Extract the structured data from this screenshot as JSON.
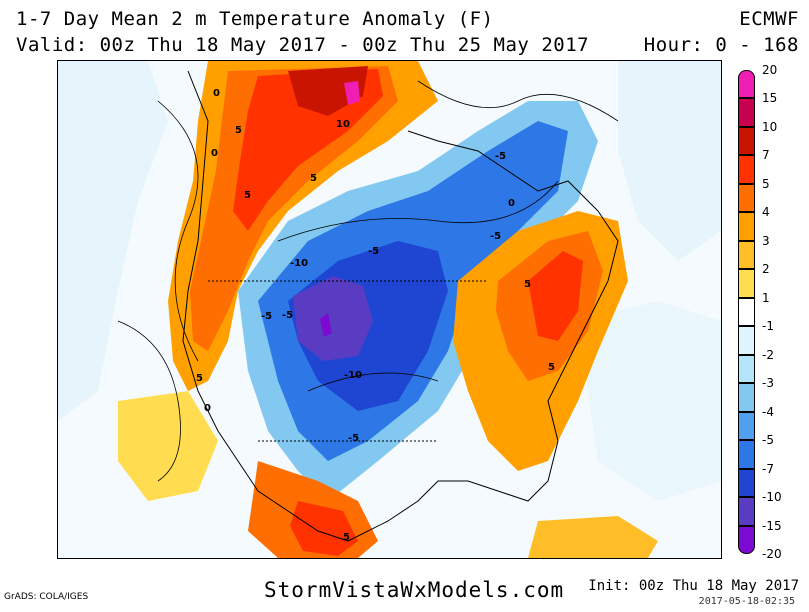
{
  "header": {
    "title": "1-7 Day Mean 2 m Temperature Anomaly (F)",
    "valid": "Valid: 00z Thu 18 May 2017 - 00z Thu 25 May 2017",
    "brand": "ECMWF",
    "hour": "Hour: 0 - 168"
  },
  "map": {
    "contour_labels": [
      "0",
      "0",
      "5",
      "10",
      "-5",
      "5",
      "5",
      "-10",
      "-5",
      "-5",
      "-5",
      "-5",
      "5",
      "5",
      "-10",
      "5",
      "0",
      "-5",
      "5",
      "0"
    ]
  },
  "legend": {
    "entries": [
      {
        "label": "20",
        "color": "#f01eb4"
      },
      {
        "label": "15",
        "color": "#c80050"
      },
      {
        "label": "10",
        "color": "#c81400"
      },
      {
        "label": "7",
        "color": "#ff3200"
      },
      {
        "label": "5",
        "color": "#ff6e00"
      },
      {
        "label": "4",
        "color": "#ffa000"
      },
      {
        "label": "3",
        "color": "#ffbe28"
      },
      {
        "label": "2",
        "color": "#ffdc50"
      },
      {
        "label": "1",
        "color": "#ffffff"
      },
      {
        "label": "-1",
        "color": "#e1f5ff"
      },
      {
        "label": "-2",
        "color": "#b4e6fa"
      },
      {
        "label": "-3",
        "color": "#82c8f0"
      },
      {
        "label": "-4",
        "color": "#50a0ee"
      },
      {
        "label": "-5",
        "color": "#2d78e6"
      },
      {
        "label": "-7",
        "color": "#1e46d2"
      },
      {
        "label": "-10",
        "color": "#5a3cc3"
      },
      {
        "label": "-15",
        "color": "#7d0ad2"
      },
      {
        "label": "-20",
        "color": ""
      }
    ]
  },
  "footer": {
    "site": "StormVistaWxModels.com",
    "credit": "GrADS: COLA/IGES",
    "init": "Init: 00z Thu 18 May 2017",
    "stamp": "2017-05-18-02:35"
  }
}
